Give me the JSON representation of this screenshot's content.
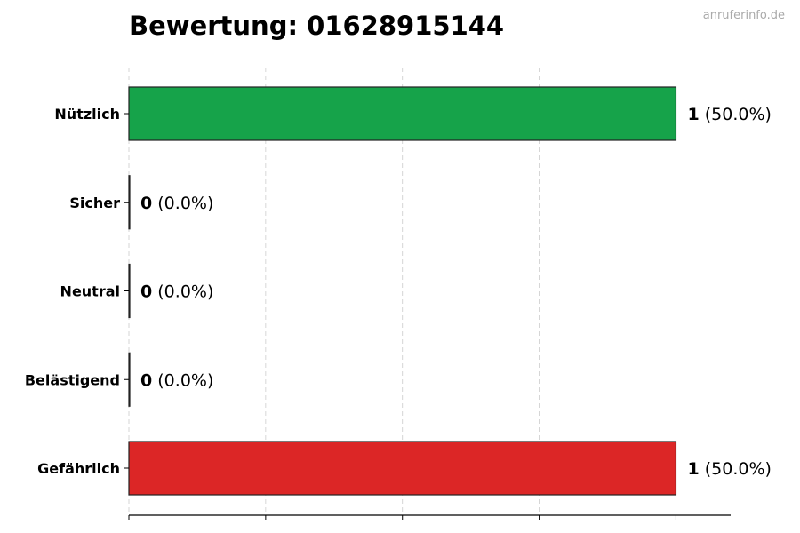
{
  "watermark": "anruferinfo.de",
  "chart_data": {
    "type": "bar",
    "orientation": "horizontal",
    "title": "Bewertung: 01628915144",
    "categories": [
      "Nützlich",
      "Sicher",
      "Neutral",
      "Belästigend",
      "Gefährlich"
    ],
    "values": [
      1,
      0,
      0,
      0,
      1
    ],
    "data_labels": [
      {
        "count": "1",
        "pct": "(50.0%)"
      },
      {
        "count": "0",
        "pct": "(0.0%)"
      },
      {
        "count": "0",
        "pct": "(0.0%)"
      },
      {
        "count": "0",
        "pct": "(0.0%)"
      },
      {
        "count": "1",
        "pct": "(50.0%)"
      }
    ],
    "colors": [
      "#16a34a",
      "#9ca3af",
      "#9ca3af",
      "#f59e0b",
      "#dc2626"
    ],
    "xlim": [
      0,
      1.1
    ],
    "xticks": [
      0,
      0.25,
      0.5,
      0.75,
      1
    ],
    "xtick_labels_shown": false,
    "grid": "x, dashed",
    "xlabel": "",
    "ylabel": ""
  }
}
